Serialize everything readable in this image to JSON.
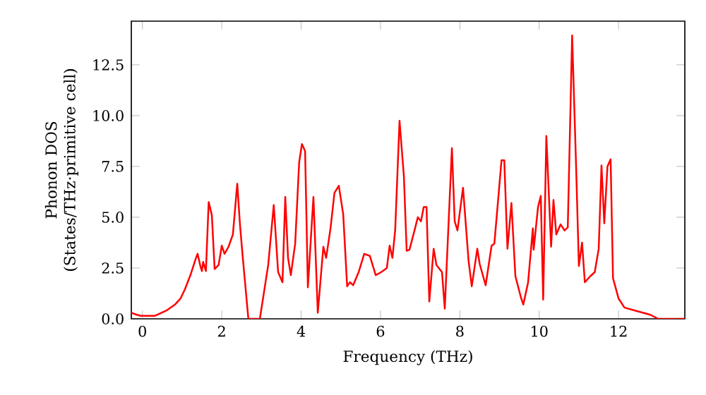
{
  "chart_data": {
    "type": "line",
    "xlabel": "Frequency (THz)",
    "ylabel": "Phonon DOS (States/THz·primitive cell)",
    "xlim": [
      -0.28,
      13.67
    ],
    "ylim": [
      0,
      14.65
    ],
    "xticks": [
      0,
      2,
      4,
      6,
      8,
      10,
      12
    ],
    "yticks": [
      {
        "value": 0,
        "label": "0.0"
      },
      {
        "value": 2.5,
        "label": "2.5"
      },
      {
        "value": 5,
        "label": "5.0"
      },
      {
        "value": 7.5,
        "label": "7.5"
      },
      {
        "value": 10,
        "label": "10.0"
      },
      {
        "value": 12.5,
        "label": "12.5"
      }
    ],
    "x": [
      -0.28,
      -0.14,
      -0.04,
      0.32,
      0.6,
      0.82,
      0.96,
      1.07,
      1.21,
      1.35,
      1.39,
      1.46,
      1.5,
      1.53,
      1.6,
      1.67,
      1.75,
      1.82,
      1.92,
      2.0,
      2.07,
      2.17,
      2.28,
      2.39,
      2.46,
      2.53,
      2.67,
      2.96,
      3.17,
      3.31,
      3.42,
      3.53,
      3.6,
      3.67,
      3.74,
      3.85,
      3.95,
      4.02,
      4.1,
      4.17,
      4.31,
      4.42,
      4.56,
      4.63,
      4.74,
      4.84,
      4.95,
      5.06,
      5.16,
      5.23,
      5.31,
      5.45,
      5.59,
      5.73,
      5.88,
      6.02,
      6.16,
      6.23,
      6.3,
      6.37,
      6.48,
      6.59,
      6.66,
      6.73,
      6.87,
      6.94,
      7.02,
      7.09,
      7.16,
      7.23,
      7.34,
      7.41,
      7.55,
      7.62,
      7.8,
      7.87,
      7.94,
      8.08,
      8.22,
      8.3,
      8.44,
      8.5,
      8.65,
      8.8,
      8.87,
      9.05,
      9.12,
      9.2,
      9.3,
      9.4,
      9.54,
      9.6,
      9.72,
      9.84,
      9.86,
      9.97,
      10.04,
      10.1,
      10.18,
      10.3,
      10.36,
      10.43,
      10.54,
      10.64,
      10.72,
      10.83,
      10.93,
      11.0,
      11.08,
      11.15,
      11.29,
      11.4,
      11.5,
      11.57,
      11.64,
      11.72,
      11.8,
      11.86,
      12.0,
      12.15,
      12.43,
      12.8,
      13.0,
      13.67
    ],
    "series": [
      {
        "color": "#ff0000",
        "values": [
          0.3,
          0.2,
          0.15,
          0.15,
          0.4,
          0.7,
          1.0,
          1.45,
          2.15,
          3.0,
          3.2,
          2.6,
          2.35,
          2.8,
          2.35,
          5.75,
          5.1,
          2.45,
          2.65,
          3.6,
          3.2,
          3.55,
          4.15,
          6.65,
          4.6,
          3.0,
          0,
          0,
          2.65,
          5.6,
          2.3,
          1.8,
          6.0,
          3.0,
          2.15,
          3.7,
          7.7,
          8.6,
          8.25,
          1.55,
          6.0,
          0.3,
          3.55,
          3.0,
          4.45,
          6.2,
          6.55,
          5.15,
          1.6,
          1.8,
          1.65,
          2.3,
          3.2,
          3.1,
          2.15,
          2.3,
          2.5,
          3.6,
          3.0,
          4.35,
          9.75,
          7.0,
          3.35,
          3.4,
          4.45,
          5.0,
          4.8,
          5.5,
          5.5,
          0.85,
          3.45,
          2.65,
          2.3,
          0.5,
          8.4,
          4.8,
          4.35,
          6.45,
          2.85,
          1.6,
          3.45,
          2.7,
          1.65,
          3.6,
          3.7,
          7.8,
          7.8,
          3.45,
          5.7,
          2.1,
          1.05,
          0.7,
          1.8,
          4.45,
          3.4,
          5.5,
          6.05,
          0.95,
          9.0,
          3.55,
          5.85,
          4.15,
          4.65,
          4.35,
          4.5,
          13.95,
          7.5,
          2.6,
          3.75,
          1.8,
          2.1,
          2.3,
          3.45,
          7.55,
          4.7,
          7.5,
          7.85,
          2.0,
          1.0,
          0.55,
          0.4,
          0.2,
          0.0,
          0.0
        ]
      }
    ]
  }
}
